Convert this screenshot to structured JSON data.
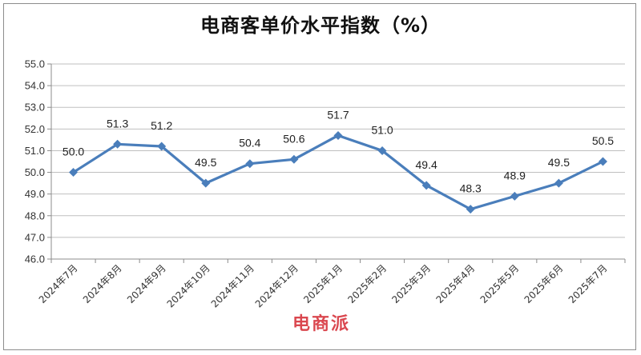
{
  "chart_data": {
    "type": "line",
    "title": "电商客单价水平指数（%）",
    "categories": [
      "2024年7月",
      "2024年8月",
      "2024年9月",
      "2024年10月",
      "2024年11月",
      "2024年12月",
      "2025年1月",
      "2025年2月",
      "2025年3月",
      "2025年4月",
      "2025年5月",
      "2025年6月",
      "2025年7月"
    ],
    "series": [
      {
        "values": [
          50.0,
          51.3,
          51.2,
          49.5,
          50.4,
          50.6,
          51.7,
          51.0,
          49.4,
          48.3,
          48.9,
          49.5,
          50.5
        ]
      }
    ],
    "data_labels": [
      "50.0",
      "51.3",
      "51.2",
      "49.5",
      "50.4",
      "50.6",
      "51.7",
      "51.0",
      "49.4",
      "48.3",
      "48.9",
      "49.5",
      "50.5"
    ],
    "yticks": [
      "46.0",
      "47.0",
      "48.0",
      "49.0",
      "50.0",
      "51.0",
      "52.0",
      "53.0",
      "54.0",
      "55.0"
    ],
    "ylim": [
      46,
      55
    ],
    "grid": true,
    "legend": "none",
    "line_color": "#4a7ebb"
  },
  "watermark": {
    "text": "电商派"
  }
}
